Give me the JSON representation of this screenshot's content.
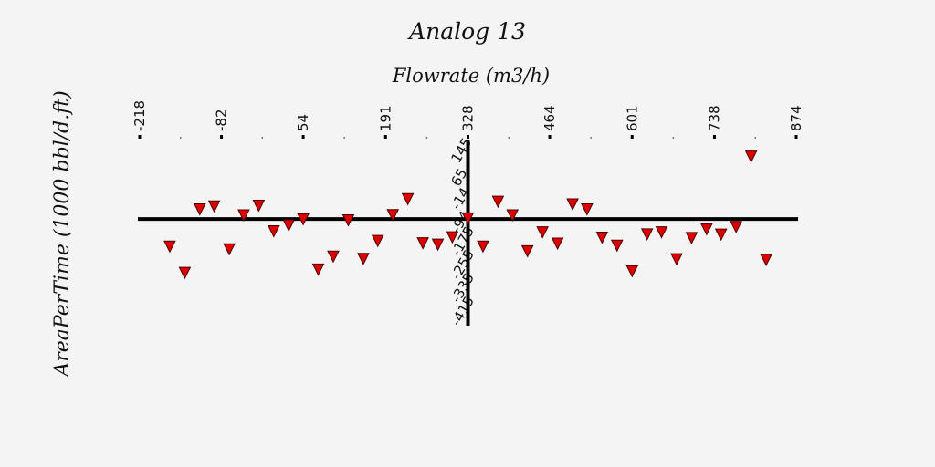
{
  "chart_data": {
    "type": "scatter",
    "title": "Analog 13",
    "xlabel": "Flowrate (m3/h)",
    "ylabel": "AreaPerTime  (1000 bbl/d.ft)",
    "x_ticks": [
      "-218",
      "-82",
      "54",
      "191",
      "328",
      "464",
      "601",
      "738",
      "874"
    ],
    "y_ticks": [
      "145",
      "65",
      "-14",
      "-94",
      "-175",
      "-255",
      "-335",
      "-415"
    ],
    "xlim": [
      -218,
      874
    ],
    "ylim": [
      -415,
      145
    ],
    "x_axis_crosses_y_at": -94,
    "y_axis_crosses_x_at": 328,
    "grid": false,
    "marker": "downward-triangle",
    "marker_color": "#dd0000",
    "marker_edge_color": "#4a0000",
    "axis_color": "#000000",
    "background": "#f4f4f4",
    "points": [
      {
        "x": -168,
        "y": -177
      },
      {
        "x": -143,
        "y": -256
      },
      {
        "x": -118,
        "y": -65
      },
      {
        "x": -94,
        "y": -56
      },
      {
        "x": -69,
        "y": -185
      },
      {
        "x": -45,
        "y": -83
      },
      {
        "x": -20,
        "y": -54
      },
      {
        "x": 5,
        "y": -131
      },
      {
        "x": 30,
        "y": -113
      },
      {
        "x": 54,
        "y": -95
      },
      {
        "x": 79,
        "y": -246
      },
      {
        "x": 104,
        "y": -207
      },
      {
        "x": 129,
        "y": -98
      },
      {
        "x": 154,
        "y": -214
      },
      {
        "x": 178,
        "y": -160
      },
      {
        "x": 203,
        "y": -82
      },
      {
        "x": 228,
        "y": -34
      },
      {
        "x": 253,
        "y": -167
      },
      {
        "x": 278,
        "y": -171
      },
      {
        "x": 302,
        "y": -149
      },
      {
        "x": 328,
        "y": -92
      },
      {
        "x": 353,
        "y": -177
      },
      {
        "x": 378,
        "y": -42
      },
      {
        "x": 402,
        "y": -83
      },
      {
        "x": 427,
        "y": -191
      },
      {
        "x": 452,
        "y": -134
      },
      {
        "x": 477,
        "y": -168
      },
      {
        "x": 502,
        "y": -50
      },
      {
        "x": 526,
        "y": -65
      },
      {
        "x": 551,
        "y": -150
      },
      {
        "x": 576,
        "y": -174
      },
      {
        "x": 601,
        "y": -251
      },
      {
        "x": 626,
        "y": -140
      },
      {
        "x": 650,
        "y": -134
      },
      {
        "x": 675,
        "y": -215
      },
      {
        "x": 700,
        "y": -151
      },
      {
        "x": 725,
        "y": -125
      },
      {
        "x": 749,
        "y": -141
      },
      {
        "x": 774,
        "y": -118
      },
      {
        "x": 799,
        "y": 94
      },
      {
        "x": 824,
        "y": -217
      }
    ]
  }
}
